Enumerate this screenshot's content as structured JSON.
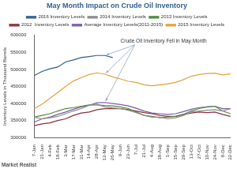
{
  "chart_data": {
    "type": "line",
    "title": "May Month Impact on Crude Oil Inventory",
    "y_label": "Inventory Levels in Thousand Barrels",
    "annotations": [
      "Crude Oil Inventory Fell in May Month"
    ],
    "footer": "Market Realist",
    "categories": [
      "7-Jan",
      "21-Jan",
      "4-Feb",
      "18-Feb",
      "3-Mar",
      "17-Mar",
      "31-Mar",
      "14-Apr",
      "28-Apr",
      "12-May",
      "26-May",
      "9-Jun",
      "23-Jun",
      "7-Jul",
      "21-Jul",
      "4-Aug",
      "18-Aug",
      "1-Sep",
      "15-Sep",
      "29-Sep",
      "13-Oct",
      "27-Oct",
      "10-Nov",
      "24-Nov",
      "8-Dec",
      "22-Dec"
    ],
    "series": [
      {
        "name": "2016 Inventory Levels",
        "color": "#2f5f8f",
        "values": [
          482000,
          494000,
          502000,
          507000,
          522000,
          528000,
          535000,
          538000,
          541000,
          541000,
          535000,
          null,
          null,
          null,
          null,
          null,
          null,
          null,
          null,
          null,
          null,
          null,
          null,
          null,
          null,
          null
        ]
      },
      {
        "name": "2014 Inventory Levels",
        "color": "#8c8c8c",
        "values": [
          360000,
          355000,
          358000,
          362000,
          370000,
          378000,
          385000,
          395000,
          398000,
          390000,
          387000,
          385000,
          380000,
          373000,
          365000,
          360000,
          360000,
          355000,
          358000,
          365000,
          375000,
          378000,
          380000,
          382000,
          378000,
          385000
        ]
      },
      {
        "name": "2013 Inventory Levels",
        "color": "#4f8a3c",
        "values": [
          360000,
          365000,
          370000,
          378000,
          385000,
          388000,
          392000,
          396000,
          396000,
          394000,
          393000,
          390000,
          385000,
          375000,
          365000,
          362000,
          358000,
          360000,
          362000,
          368000,
          378000,
          385000,
          390000,
          392000,
          378000,
          370000
        ]
      },
      {
        "name": "2012  Inventory Levels",
        "color": "#8b2f3a",
        "values": [
          335000,
          340000,
          343000,
          350000,
          355000,
          365000,
          372000,
          375000,
          382000,
          385000,
          385000,
          385000,
          382000,
          378000,
          373000,
          370000,
          365000,
          362000,
          362000,
          368000,
          372000,
          375000,
          373000,
          375000,
          368000,
          362000
        ]
      },
      {
        "name": "Average Inventory Levels(2011-2015)",
        "color": "#7b5aa6",
        "values": [
          345000,
          355000,
          360000,
          368000,
          375000,
          383000,
          390000,
          395000,
          402000,
          403000,
          400000,
          397000,
          393000,
          386000,
          378000,
          372000,
          370000,
          368000,
          370000,
          376000,
          383000,
          388000,
          390000,
          392000,
          385000,
          385000
        ]
      },
      {
        "name": "2015 Inventory Levels",
        "color": "#e3a23a",
        "values": [
          385000,
          398000,
          415000,
          432000,
          450000,
          466000,
          476000,
          485000,
          490000,
          486000,
          478000,
          472000,
          465000,
          462000,
          455000,
          452000,
          455000,
          458000,
          462000,
          470000,
          480000,
          485000,
          488000,
          489000,
          484000,
          487000
        ]
      }
    ],
    "ylim": [
      300000,
      600000
    ],
    "yticks": [
      300000,
      350000,
      400000,
      450000,
      500000,
      550000,
      600000
    ],
    "grid": false,
    "legend": "top"
  }
}
